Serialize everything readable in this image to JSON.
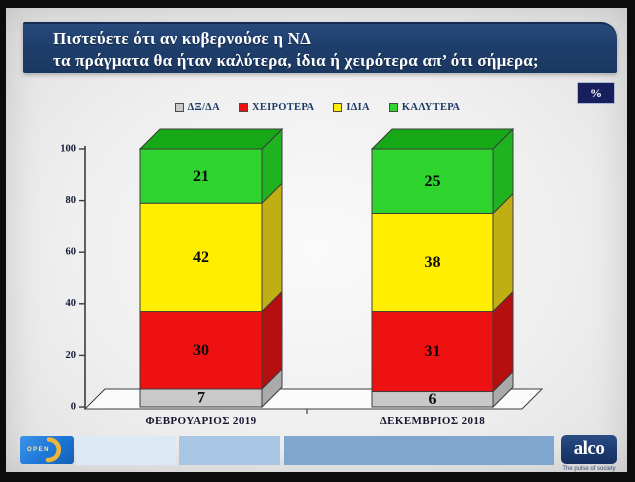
{
  "title": {
    "line1": "Πιστεύετε ότι αν κυβερνούσε η ΝΔ",
    "line2": "τα πράγματα θα ήταν καλύτερα, ίδια ή χειρότερα απ’ ότι σήμερα;"
  },
  "percent_badge": "%",
  "chart_data": {
    "type": "bar",
    "stacked": true,
    "style": "3d",
    "unit": "%",
    "categories": [
      "ΦΕΒΡΟΥΑΡΙΟΣ 2019",
      "ΔΕΚΕΜΒΡΙΟΣ 2018"
    ],
    "series": [
      {
        "name": "ΔΞ/ΔΑ",
        "values": [
          7,
          6
        ],
        "color": "#c9c9c9",
        "side_color": "#aaaaaa"
      },
      {
        "name": "ΧΕΙΡΟΤΕΡΑ",
        "values": [
          30,
          31
        ],
        "color": "#ee1111",
        "side_color": "#b50f0f"
      },
      {
        "name": "ΙΔΙΑ",
        "values": [
          42,
          38
        ],
        "color": "#ffee00",
        "side_color": "#c0ae15"
      },
      {
        "name": "ΚΑΛΥΤΕΡΑ",
        "values": [
          21,
          25
        ],
        "color": "#2fd42f",
        "side_color": "#20b320",
        "top_color": "#16a816"
      }
    ],
    "ylim": [
      0,
      100
    ],
    "yticks": [
      0,
      20,
      40,
      60,
      80,
      100
    ],
    "legend_position": "top",
    "grid": false
  },
  "footer": {
    "channel_logo_text": "OPEN",
    "agency_name": "alco",
    "agency_tagline": "The pulse of society"
  },
  "colors": {
    "title_bar": "#1e3e6c",
    "badge": "#17205c",
    "legend_text": "#1d3a66",
    "axis": "#3c3c3c",
    "open_logo_blue": "#1a74d4",
    "open_logo_arc": "#f0b33c",
    "alco_navy": "#1c3a70"
  }
}
